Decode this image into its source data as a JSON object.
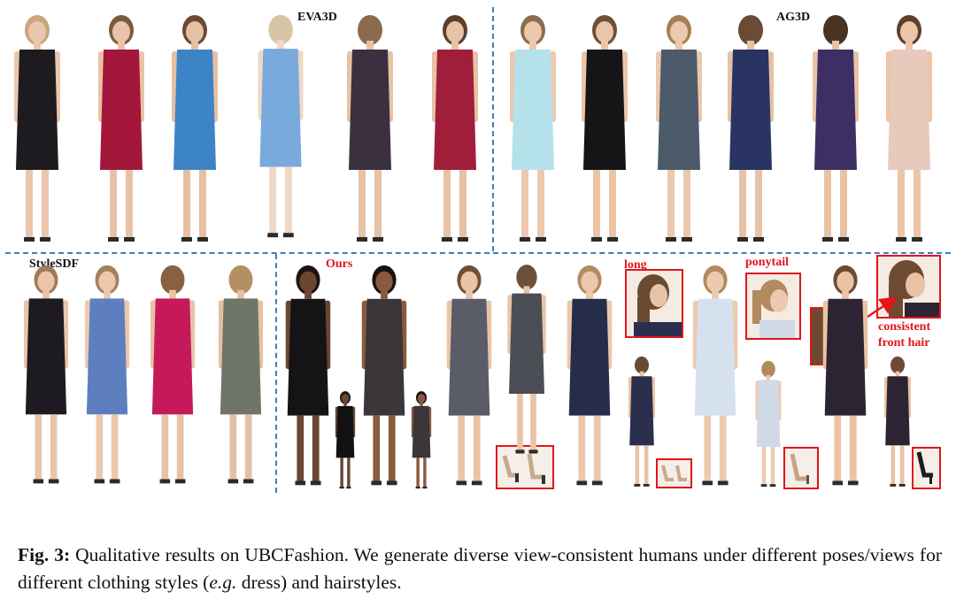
{
  "panels": {
    "eva3d": "EVA3D",
    "ag3d": "AG3D",
    "stylesdf": "StyleSDF",
    "ours": "Ours"
  },
  "annotations": {
    "long": "long",
    "ponytail": "ponytail",
    "consistent_line1": "consistent",
    "consistent_line2": "front hair"
  },
  "caption": {
    "label": "Fig. 3:",
    "text_before_eg": " Qualitative results on UBCFashion. We generate diverse view-consistent humans under different poses/views for different clothing styles (",
    "eg": "e.g.",
    "text_after_eg": " dress) and hairstyles."
  },
  "colors": {
    "divider": "#3a7fc1",
    "annotation": "#e0161b"
  }
}
